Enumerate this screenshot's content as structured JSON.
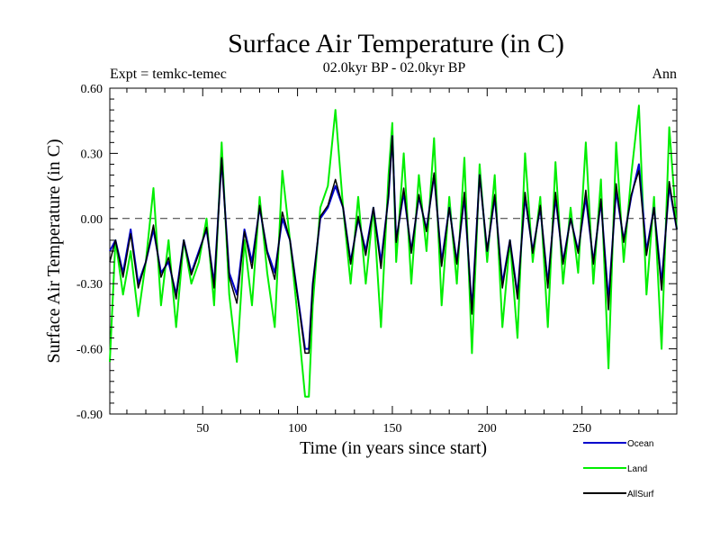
{
  "chart_data": {
    "type": "line",
    "title": "Surface Air Temperature (in C)",
    "subtitle": "02.0kyr BP - 02.0kyr BP",
    "annotation_left": "Expt = temkc-temec",
    "annotation_right": "Ann",
    "xlabel": "Time (in years since start)",
    "ylabel": "Surface Air Temperature (in C)",
    "xlim": [
      1,
      300
    ],
    "ylim": [
      -0.9,
      0.6
    ],
    "x_ticks": [
      50,
      100,
      150,
      200,
      250
    ],
    "x_tick_labels": [
      "50",
      "100",
      "150",
      "200",
      "250"
    ],
    "y_ticks": [
      -0.9,
      -0.6,
      -0.3,
      0.0,
      0.3,
      0.6
    ],
    "y_tick_labels": [
      "-0.90",
      "-0.60",
      "-0.30",
      "0.00",
      "0.30",
      "0.60"
    ],
    "reference_line": 0.0,
    "legend_position": "bottom-right",
    "colors": {
      "Ocean": "#0000cc",
      "Land": "#00ee00",
      "AllSurf": "#000000"
    },
    "series": [
      {
        "name": "Land",
        "x": [
          1,
          4,
          8,
          12,
          16,
          20,
          24,
          28,
          32,
          36,
          40,
          44,
          48,
          52,
          56,
          60,
          64,
          68,
          72,
          76,
          80,
          84,
          88,
          92,
          96,
          100,
          104,
          106,
          108,
          112,
          116,
          120,
          124,
          128,
          132,
          136,
          140,
          144,
          148,
          150,
          152,
          156,
          160,
          164,
          168,
          172,
          176,
          180,
          184,
          188,
          192,
          196,
          200,
          204,
          208,
          212,
          216,
          220,
          224,
          228,
          232,
          236,
          240,
          244,
          248,
          252,
          256,
          260,
          264,
          268,
          272,
          276,
          280,
          284,
          288,
          292,
          296,
          300
        ],
        "values": [
          -0.66,
          -0.1,
          -0.35,
          -0.15,
          -0.45,
          -0.2,
          0.14,
          -0.4,
          -0.1,
          -0.5,
          -0.1,
          -0.3,
          -0.2,
          0.0,
          -0.4,
          0.35,
          -0.35,
          -0.66,
          -0.1,
          -0.4,
          0.1,
          -0.25,
          -0.5,
          0.22,
          -0.1,
          -0.45,
          -0.82,
          -0.82,
          -0.4,
          0.05,
          0.15,
          0.5,
          0.05,
          -0.3,
          0.1,
          -0.3,
          0.05,
          -0.5,
          0.2,
          0.44,
          -0.2,
          0.3,
          -0.3,
          0.2,
          -0.15,
          0.37,
          -0.4,
          0.1,
          -0.3,
          0.28,
          -0.62,
          0.25,
          -0.2,
          0.2,
          -0.5,
          -0.1,
          -0.55,
          0.3,
          -0.2,
          0.1,
          -0.5,
          0.26,
          -0.3,
          0.05,
          -0.25,
          0.35,
          -0.3,
          0.18,
          -0.69,
          0.35,
          -0.2,
          0.2,
          0.52,
          -0.35,
          0.1,
          -0.6,
          0.42,
          -0.05
        ]
      },
      {
        "name": "Ocean",
        "x": [
          1,
          4,
          8,
          12,
          16,
          20,
          24,
          28,
          32,
          36,
          40,
          44,
          48,
          52,
          56,
          60,
          64,
          68,
          72,
          76,
          80,
          84,
          88,
          92,
          96,
          100,
          104,
          106,
          108,
          112,
          116,
          120,
          124,
          128,
          132,
          136,
          140,
          144,
          148,
          150,
          152,
          156,
          160,
          164,
          168,
          172,
          176,
          180,
          184,
          188,
          192,
          196,
          200,
          204,
          208,
          212,
          216,
          220,
          224,
          228,
          232,
          236,
          240,
          244,
          248,
          252,
          256,
          260,
          264,
          268,
          272,
          276,
          280,
          284,
          288,
          292,
          296,
          300
        ],
        "values": [
          -0.15,
          -0.1,
          -0.25,
          -0.05,
          -0.3,
          -0.2,
          -0.05,
          -0.25,
          -0.2,
          -0.35,
          -0.1,
          -0.25,
          -0.15,
          -0.05,
          -0.3,
          0.27,
          -0.25,
          -0.35,
          -0.05,
          -0.2,
          0.05,
          -0.15,
          -0.25,
          0.0,
          -0.1,
          -0.35,
          -0.6,
          -0.6,
          -0.3,
          0.0,
          0.05,
          0.15,
          0.05,
          -0.2,
          0.0,
          -0.15,
          0.05,
          -0.2,
          0.1,
          0.38,
          -0.1,
          0.12,
          -0.15,
          0.1,
          -0.05,
          0.2,
          -0.2,
          0.05,
          -0.2,
          0.1,
          -0.42,
          0.2,
          -0.15,
          0.1,
          -0.3,
          -0.1,
          -0.35,
          0.1,
          -0.15,
          0.05,
          -0.3,
          0.1,
          -0.2,
          0.0,
          -0.15,
          0.1,
          -0.2,
          0.08,
          -0.38,
          0.13,
          -0.1,
          0.1,
          0.25,
          -0.15,
          0.05,
          -0.3,
          0.15,
          -0.05
        ]
      },
      {
        "name": "AllSurf",
        "x": [
          1,
          4,
          8,
          12,
          16,
          20,
          24,
          28,
          32,
          36,
          40,
          44,
          48,
          52,
          56,
          60,
          64,
          68,
          72,
          76,
          80,
          84,
          88,
          92,
          96,
          100,
          104,
          106,
          108,
          112,
          116,
          120,
          124,
          128,
          132,
          136,
          140,
          144,
          148,
          150,
          152,
          156,
          160,
          164,
          168,
          172,
          176,
          180,
          184,
          188,
          192,
          196,
          200,
          204,
          208,
          212,
          216,
          220,
          224,
          228,
          232,
          236,
          240,
          244,
          248,
          252,
          256,
          260,
          264,
          268,
          272,
          276,
          280,
          284,
          288,
          292,
          296,
          300
        ],
        "values": [
          -0.2,
          -0.1,
          -0.27,
          -0.07,
          -0.32,
          -0.2,
          -0.03,
          -0.27,
          -0.18,
          -0.37,
          -0.1,
          -0.26,
          -0.16,
          -0.04,
          -0.32,
          0.28,
          -0.27,
          -0.39,
          -0.06,
          -0.23,
          0.06,
          -0.16,
          -0.28,
          0.03,
          -0.1,
          -0.36,
          -0.62,
          -0.62,
          -0.31,
          0.01,
          0.06,
          0.18,
          0.05,
          -0.21,
          0.01,
          -0.17,
          0.05,
          -0.23,
          0.11,
          0.38,
          -0.11,
          0.14,
          -0.16,
          0.11,
          -0.06,
          0.21,
          -0.22,
          0.05,
          -0.21,
          0.12,
          -0.44,
          0.2,
          -0.15,
          0.11,
          -0.32,
          -0.1,
          -0.37,
          0.12,
          -0.16,
          0.06,
          -0.32,
          0.12,
          -0.21,
          0.0,
          -0.16,
          0.13,
          -0.21,
          0.09,
          -0.42,
          0.16,
          -0.11,
          0.11,
          0.22,
          -0.17,
          0.05,
          -0.33,
          0.17,
          -0.05
        ]
      }
    ]
  }
}
